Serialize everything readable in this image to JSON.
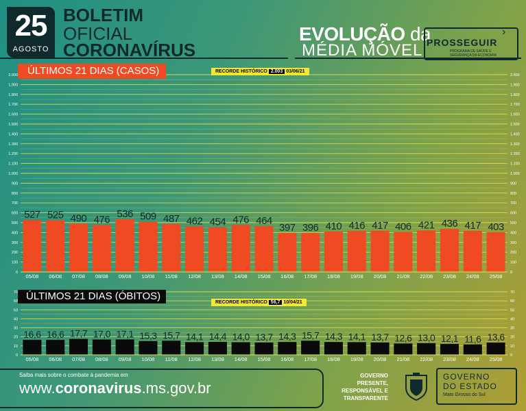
{
  "header": {
    "day": "25",
    "month": "AGOSTO",
    "title_line1": "BOLETIM",
    "title_line2": "OFICIAL",
    "title_line3": "CORONAVÍRUS",
    "chart_title_bold": "EVOLUÇÃO",
    "chart_title_da": " da",
    "chart_title_line2": "MÉDIA MÓVEL",
    "partner_name": "PROSSEGUIR",
    "partner_subtitle": "PROGRAMA DE SAÚDE E SEGURANÇA DA ECONOMIA"
  },
  "cases_section": {
    "label": "ÚLTIMOS 21 DIAS (CASOS)",
    "record_label": "RECORDE HISTÓRICO",
    "record_value": "2.003",
    "record_date": "03/06/21"
  },
  "deaths_section": {
    "label": "ÚLTIMOS 21 DIAS (ÓBITOS)",
    "record_label": "RECORDE HISTÓRICO",
    "record_value": "56,7",
    "record_date": "10/04/21"
  },
  "footer": {
    "info_text": "Saiba mais sobre o combate à pandemia em",
    "url_prefix": "www.",
    "url_bold": "coronavirus",
    "url_suffix": ".ms.gov.br",
    "gov_slogan_1": "GOVERNO",
    "gov_slogan_2": "PRESENTE,",
    "gov_slogan_3": "RESPONSÁVEL E",
    "gov_slogan_4": "TRANSPARENTE",
    "gov_name_1": "GOVERNO",
    "gov_name_2": "DO ESTADO",
    "gov_state": "Mato Grosso do Sul"
  },
  "colors": {
    "cases_bar": "#f04a22",
    "deaths_bar": "#0a0a0a",
    "grid": "#e8e04a",
    "dark": "#0f2a2c",
    "record_bg": "#f4e834"
  },
  "chart_data": [
    {
      "type": "bar",
      "categories": [
        "05/08",
        "06/08",
        "07/08",
        "08/08",
        "09/08",
        "10/08",
        "11/08",
        "12/08",
        "13/08",
        "14/08",
        "15/08",
        "16/08",
        "17/08",
        "18/08",
        "19/08",
        "20/08",
        "21/08",
        "22/08",
        "23/08",
        "24/08",
        "25/08"
      ],
      "values": [
        527,
        525,
        490,
        476,
        536,
        509,
        487,
        462,
        454,
        476,
        464,
        397,
        396,
        410,
        416,
        417,
        406,
        421,
        436,
        417,
        403
      ],
      "value_labels": [
        "527",
        "525",
        "490",
        "476",
        "536",
        "509",
        "487",
        "462",
        "454",
        "476",
        "464",
        "397",
        "396",
        "410",
        "416",
        "417",
        "406",
        "421",
        "436",
        "417",
        "403"
      ],
      "ylim": [
        0,
        2000
      ],
      "yticks": [
        0,
        100,
        200,
        300,
        400,
        500,
        600,
        700,
        800,
        900,
        1000,
        1100,
        1200,
        1300,
        1400,
        1500,
        1600,
        1700,
        1800,
        1900,
        2000
      ],
      "ytick_labels": [
        "0",
        "100",
        "200",
        "300",
        "400",
        "500",
        "600",
        "700",
        "800",
        "900",
        "1.000",
        "1.100",
        "1.200",
        "1.300",
        "1.400",
        "1.500",
        "1.600",
        "1.700",
        "1.800",
        "1.900",
        "2.000"
      ],
      "grid": true
    },
    {
      "type": "bar",
      "categories": [
        "05/08",
        "06/08",
        "07/08",
        "08/08",
        "09/08",
        "10/08",
        "11/08",
        "12/08",
        "13/08",
        "14/08",
        "15/08",
        "16/08",
        "17/08",
        "18/08",
        "19/08",
        "20/08",
        "21/08",
        "22/08",
        "23/08",
        "24/08",
        "25/08"
      ],
      "values": [
        16.6,
        16.6,
        17.7,
        17.0,
        17.1,
        15.3,
        15.7,
        14.1,
        14.4,
        14.0,
        13.7,
        14.3,
        15.7,
        14.3,
        14.1,
        13.7,
        12.6,
        13.0,
        12.1,
        11.6,
        13.6
      ],
      "value_labels": [
        "16,6",
        "16,6",
        "17,7",
        "17,0",
        "17,1",
        "15,3",
        "15,7",
        "14,1",
        "14,4",
        "14,0",
        "13,7",
        "14,3",
        "15,7",
        "14,3",
        "14,1",
        "13,7",
        "12,6",
        "13,0",
        "12,1",
        "11,6",
        "13,6"
      ],
      "ylim": [
        0,
        70
      ],
      "yticks": [
        0,
        10,
        20,
        30,
        40,
        50,
        60,
        70
      ],
      "ytick_labels": [
        "0",
        "10",
        "20",
        "30",
        "40",
        "50",
        "60",
        "70"
      ],
      "grid": true
    }
  ]
}
